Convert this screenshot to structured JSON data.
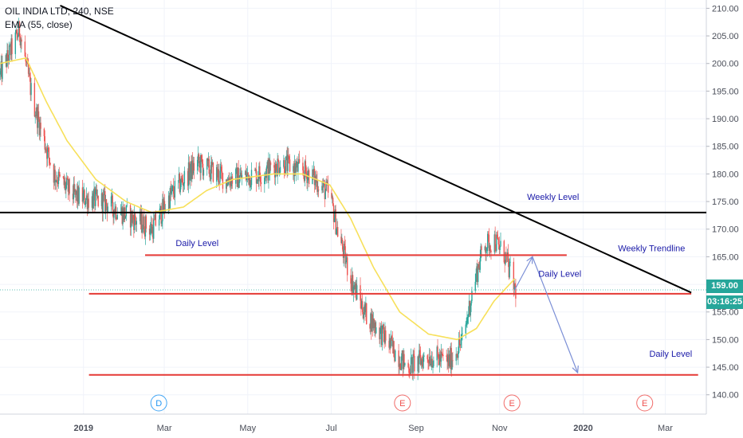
{
  "header": {
    "symbol_line": "OIL INDIA LTD, 240, NSE",
    "indicator_line": "EMA (55, close)"
  },
  "price_tag": {
    "price": "159.00",
    "countdown": "03:16:25",
    "color": "#26a69a"
  },
  "colors": {
    "up": "#26a69a",
    "down": "#ef5350",
    "ema": "#f7e05a",
    "level": "#e53935",
    "trend": "#000000",
    "annotation": "#1a1aa8",
    "arrow": "#7b8fd6",
    "dividend_marker": "#2196f3",
    "earnings_marker": "#ef5350"
  },
  "chart_data": {
    "type": "candlestick",
    "title": "OIL INDIA LTD, 240, NSE",
    "indicator": "EMA (55, close)",
    "xlabel": "",
    "ylabel": "",
    "y_axis_side": "right",
    "ylim": [
      136.5,
      211.5
    ],
    "y_ticks": [
      140.0,
      145.0,
      150.0,
      155.0,
      160.0,
      165.0,
      170.0,
      175.0,
      180.0,
      185.0,
      190.0,
      195.0,
      200.0,
      205.0,
      210.0
    ],
    "y_tick_labels": [
      "140.00",
      "145.00",
      "150.00",
      "155.00",
      "160.00",
      "165.00",
      "170.00",
      "175.00",
      "180.00",
      "185.00",
      "190.00",
      "195.00",
      "200.00",
      "205.00",
      "210.00"
    ],
    "x_ticks": [
      "2019",
      "Mar",
      "May",
      "Jul",
      "Sep",
      "Nov",
      "2020",
      "Mar"
    ],
    "x_range": [
      "2018-11-01",
      "2020-03-31"
    ],
    "x_tick_dates": [
      "2019-01-01",
      "2019-03-01",
      "2019-05-01",
      "2019-07-01",
      "2019-09-01",
      "2019-11-01",
      "2020-01-01",
      "2020-03-01"
    ],
    "grid": true,
    "price_waypoints": [
      [
        "2018-11-01",
        198
      ],
      [
        "2018-11-15",
        206
      ],
      [
        "2018-11-25",
        193
      ],
      [
        "2018-12-10",
        180
      ],
      [
        "2018-12-25",
        176
      ],
      [
        "2019-01-15",
        175
      ],
      [
        "2019-02-05",
        172
      ],
      [
        "2019-02-20",
        170
      ],
      [
        "2019-03-05",
        176
      ],
      [
        "2019-03-25",
        182
      ],
      [
        "2019-04-15",
        179
      ],
      [
        "2019-05-10",
        180
      ],
      [
        "2019-05-25",
        182
      ],
      [
        "2019-06-15",
        180
      ],
      [
        "2019-06-30",
        176
      ],
      [
        "2019-07-05",
        170
      ],
      [
        "2019-07-15",
        161
      ],
      [
        "2019-07-25",
        155
      ],
      [
        "2019-08-10",
        150
      ],
      [
        "2019-08-25",
        145
      ],
      [
        "2019-09-10",
        147
      ],
      [
        "2019-09-25",
        146
      ],
      [
        "2019-10-05",
        150
      ],
      [
        "2019-10-12",
        159
      ],
      [
        "2019-10-20",
        167
      ],
      [
        "2019-10-28",
        168
      ],
      [
        "2019-11-05",
        165
      ],
      [
        "2019-11-12",
        159
      ]
    ],
    "ema_waypoints": [
      [
        "2018-11-01",
        200
      ],
      [
        "2018-11-20",
        201
      ],
      [
        "2018-12-05",
        193
      ],
      [
        "2018-12-20",
        186
      ],
      [
        "2019-01-10",
        179
      ],
      [
        "2019-02-01",
        175
      ],
      [
        "2019-02-20",
        173
      ],
      [
        "2019-03-15",
        174
      ],
      [
        "2019-04-01",
        177
      ],
      [
        "2019-04-20",
        179
      ],
      [
        "2019-05-20",
        180
      ],
      [
        "2019-06-10",
        180
      ],
      [
        "2019-06-30",
        178
      ],
      [
        "2019-07-15",
        172
      ],
      [
        "2019-08-01",
        163
      ],
      [
        "2019-08-20",
        155
      ],
      [
        "2019-09-10",
        151
      ],
      [
        "2019-10-01",
        150
      ],
      [
        "2019-10-15",
        152
      ],
      [
        "2019-10-28",
        157
      ],
      [
        "2019-11-12",
        161
      ]
    ],
    "horizontal_levels": [
      {
        "name": "weekly-level",
        "price": 173.0,
        "from": "2018-11-01",
        "to": "2020-03-31",
        "color": "#000000"
      },
      {
        "name": "daily-level-1",
        "price": 165.3,
        "from": "2019-02-15",
        "to": "2019-12-20",
        "color": "#e53935"
      },
      {
        "name": "daily-level-2",
        "price": 158.3,
        "from": "2019-01-05",
        "to": "2020-03-20",
        "color": "#e53935"
      },
      {
        "name": "daily-level-3",
        "price": 143.6,
        "from": "2019-01-05",
        "to": "2020-03-25",
        "color": "#e53935"
      }
    ],
    "trendline": {
      "from": [
        "2018-12-15",
        210.5
      ],
      "to": [
        "2020-03-20",
        158.5
      ]
    },
    "projection_arrow": [
      [
        "2019-11-12",
        159
      ],
      [
        "2019-11-25",
        165
      ],
      [
        "2019-12-28",
        144
      ]
    ],
    "annotations": [
      {
        "text": "Weekly Level",
        "date": "2019-12-10",
        "price": 175.3
      },
      {
        "text": "Daily Level",
        "date": "2019-03-25",
        "price": 166.9
      },
      {
        "text": "Weekly Trendline",
        "date": "2020-02-20",
        "price": 166.0
      },
      {
        "text": "Daily Level",
        "date": "2019-12-15",
        "price": 161.4
      },
      {
        "text": "Daily Level",
        "date": "2020-03-05",
        "price": 146.9
      }
    ],
    "events": [
      {
        "type": "dividend",
        "label": "D",
        "date": "2019-02-25"
      },
      {
        "type": "earnings",
        "label": "E",
        "date": "2019-08-22"
      },
      {
        "type": "earnings",
        "label": "E",
        "date": "2019-11-10"
      },
      {
        "type": "earnings",
        "label": "E",
        "date": "2020-02-15"
      }
    ],
    "last_price": 159.0
  }
}
